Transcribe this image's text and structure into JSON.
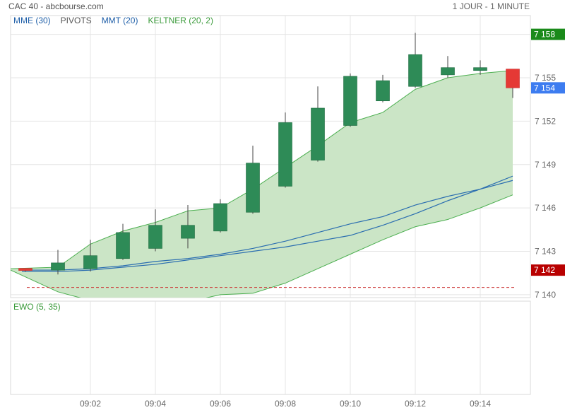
{
  "header": {
    "title": "CAC 40 - abcbourse.com",
    "period": "1 JOUR - 1 MINUTE"
  },
  "indicators": [
    {
      "label": "MME (30)",
      "color": "#1f5fa8"
    },
    {
      "label": "PIVOTS",
      "color": "#555555"
    },
    {
      "label": "MMT (20)",
      "color": "#1f5fa8"
    },
    {
      "label": "KELTNER (20, 2)",
      "color": "#3a9a3a"
    }
  ],
  "lower_panel": {
    "label": "EWO (5, 35)",
    "color": "#3a9a3a"
  },
  "colors": {
    "up": "#2e8b57",
    "down": "#e53935",
    "keltner_fill": "#cbe5c6",
    "keltner_line": "#4caf50",
    "ma_line": "#2a6db0",
    "pivot_line": "#cc3333",
    "grid": "#e4e4e4",
    "tag_high": "#1a8a1a",
    "tag_last": "#3d7cf0",
    "tag_low": "#b80000"
  },
  "chart_data": {
    "type": "candlestick",
    "x_tick_labels": [
      "09:02",
      "09:04",
      "09:06",
      "09:08",
      "09:10",
      "09:12",
      "09:14"
    ],
    "y_tick_labels": [
      "7 158",
      "7 155",
      "7 152",
      "7 149",
      "7 146",
      "7 143",
      "7 140"
    ],
    "y_ticks": [
      7158,
      7155,
      7152,
      7149,
      7146,
      7143,
      7140
    ],
    "ylim": [
      7139.8,
      7159.3
    ],
    "price_tags": [
      {
        "label": "7 158",
        "value": 7158.0,
        "kind": "high"
      },
      {
        "label": "7 154",
        "value": 7154.3,
        "kind": "last"
      },
      {
        "label": "7 142",
        "value": 7141.7,
        "kind": "low"
      }
    ],
    "pivot_level": 7140.5,
    "candles": [
      {
        "t": "09:00",
        "open": 7141.8,
        "high": 7141.8,
        "low": 7141.6,
        "close": 7141.7
      },
      {
        "t": "09:01",
        "open": 7141.7,
        "high": 7143.1,
        "low": 7141.4,
        "close": 7142.2
      },
      {
        "t": "09:02",
        "open": 7141.8,
        "high": 7143.8,
        "low": 7141.6,
        "close": 7142.7
      },
      {
        "t": "09:03",
        "open": 7142.5,
        "high": 7144.9,
        "low": 7142.4,
        "close": 7144.3
      },
      {
        "t": "09:04",
        "open": 7143.2,
        "high": 7145.9,
        "low": 7143.0,
        "close": 7144.8
      },
      {
        "t": "09:05",
        "open": 7143.9,
        "high": 7146.2,
        "low": 7143.2,
        "close": 7144.8
      },
      {
        "t": "09:06",
        "open": 7144.4,
        "high": 7146.6,
        "low": 7144.3,
        "close": 7146.3
      },
      {
        "t": "09:07",
        "open": 7145.7,
        "high": 7150.3,
        "low": 7145.6,
        "close": 7149.1
      },
      {
        "t": "09:08",
        "open": 7147.5,
        "high": 7152.6,
        "low": 7147.4,
        "close": 7151.9
      },
      {
        "t": "09:09",
        "open": 7149.3,
        "high": 7154.4,
        "low": 7149.2,
        "close": 7152.9
      },
      {
        "t": "09:10",
        "open": 7151.7,
        "high": 7155.3,
        "low": 7151.6,
        "close": 7155.1
      },
      {
        "t": "09:11",
        "open": 7153.4,
        "high": 7155.2,
        "low": 7153.3,
        "close": 7154.8
      },
      {
        "t": "09:12",
        "open": 7154.4,
        "high": 7158.1,
        "low": 7154.3,
        "close": 7156.6
      },
      {
        "t": "09:13",
        "open": 7155.2,
        "high": 7156.5,
        "low": 7155.0,
        "close": 7155.7
      },
      {
        "t": "09:14",
        "open": 7155.5,
        "high": 7156.2,
        "low": 7155.2,
        "close": 7155.7
      },
      {
        "t": "09:15",
        "open": 7155.6,
        "high": 7155.6,
        "low": 7153.6,
        "close": 7154.3
      }
    ],
    "keltner_upper": [
      7141.8,
      7141.9,
      7143.5,
      7144.4,
      7145.0,
      7145.8,
      7146.0,
      7147.3,
      7148.8,
      7150.3,
      7151.9,
      7152.6,
      7154.2,
      7155.0,
      7155.3,
      7155.5
    ],
    "keltner_lower": [
      7141.7,
      7140.2,
      7139.6,
      7139.4,
      7139.4,
      7139.5,
      7140.0,
      7140.1,
      7140.8,
      7141.8,
      7142.8,
      7143.8,
      7144.7,
      7145.2,
      7146.0,
      7146.9
    ],
    "ma_series": [
      {
        "values": [
          7141.7,
          7141.7,
          7141.8,
          7142.0,
          7142.3,
          7142.5,
          7142.8,
          7143.2,
          7143.7,
          7144.3,
          7144.9,
          7145.4,
          7146.2,
          7146.8,
          7147.3,
          7147.9
        ]
      },
      {
        "values": [
          7141.6,
          7141.6,
          7141.7,
          7141.9,
          7142.1,
          7142.4,
          7142.7,
          7143.0,
          7143.3,
          7143.7,
          7144.1,
          7144.8,
          7145.6,
          7146.5,
          7147.3,
          7148.2
        ]
      }
    ]
  }
}
